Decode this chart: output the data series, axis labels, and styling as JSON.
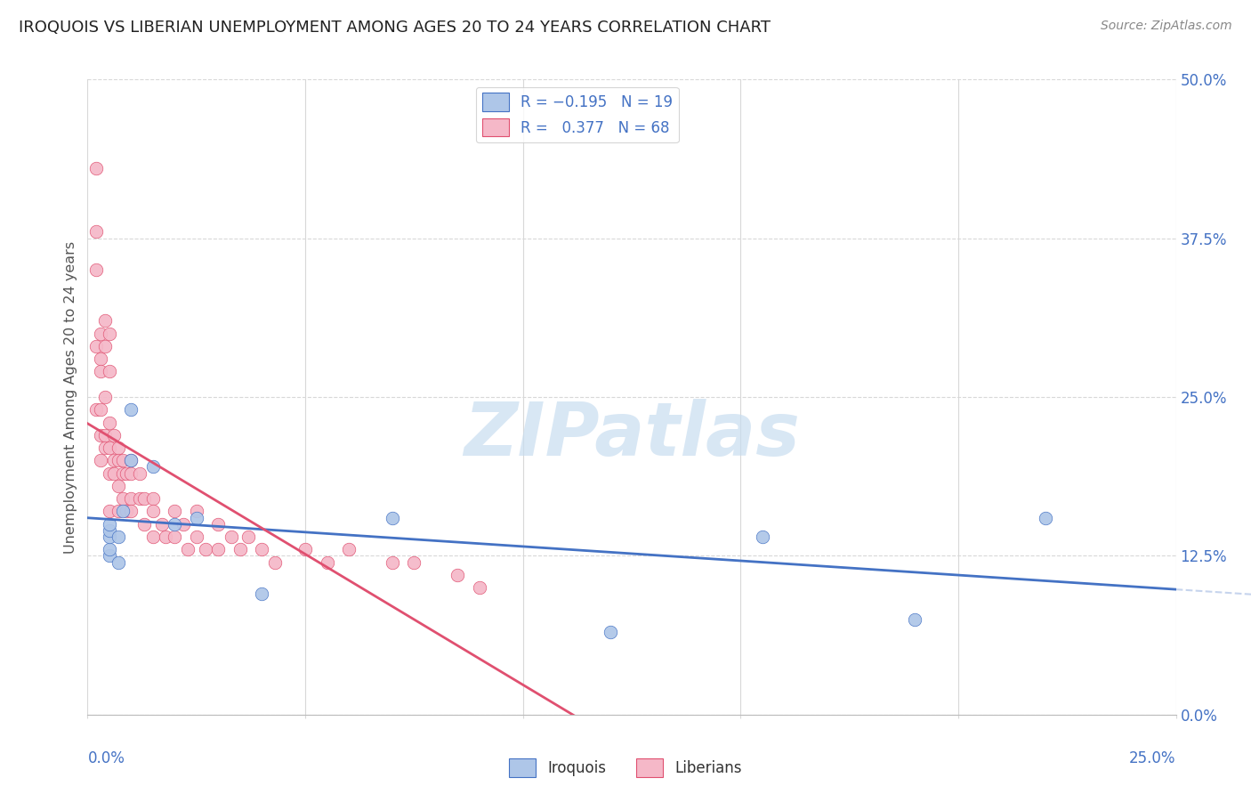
{
  "title": "IROQUOIS VS LIBERIAN UNEMPLOYMENT AMONG AGES 20 TO 24 YEARS CORRELATION CHART",
  "source": "Source: ZipAtlas.com",
  "ylabel": "Unemployment Among Ages 20 to 24 years",
  "yticks": [
    "0.0%",
    "12.5%",
    "25.0%",
    "37.5%",
    "50.0%"
  ],
  "ytick_vals": [
    0.0,
    0.125,
    0.25,
    0.375,
    0.5
  ],
  "xlim": [
    0.0,
    0.25
  ],
  "ylim": [
    0.0,
    0.5
  ],
  "iroquois_color": "#aec6e8",
  "liberian_color": "#f5b8c8",
  "iroquois_line_color": "#4472c4",
  "liberian_line_color": "#e05070",
  "R_iroquois": -0.195,
  "N_iroquois": 19,
  "R_liberian": 0.377,
  "N_liberian": 68,
  "iroquois_x": [
    0.005,
    0.005,
    0.005,
    0.005,
    0.005,
    0.007,
    0.007,
    0.008,
    0.01,
    0.01,
    0.015,
    0.02,
    0.025,
    0.04,
    0.07,
    0.12,
    0.155,
    0.19,
    0.22
  ],
  "iroquois_y": [
    0.125,
    0.13,
    0.14,
    0.145,
    0.15,
    0.12,
    0.14,
    0.16,
    0.24,
    0.2,
    0.195,
    0.15,
    0.155,
    0.095,
    0.155,
    0.065,
    0.14,
    0.075,
    0.155
  ],
  "liberian_x": [
    0.002,
    0.002,
    0.002,
    0.002,
    0.002,
    0.003,
    0.003,
    0.003,
    0.003,
    0.003,
    0.003,
    0.004,
    0.004,
    0.004,
    0.004,
    0.004,
    0.005,
    0.005,
    0.005,
    0.005,
    0.005,
    0.005,
    0.006,
    0.006,
    0.006,
    0.007,
    0.007,
    0.007,
    0.007,
    0.008,
    0.008,
    0.008,
    0.009,
    0.009,
    0.01,
    0.01,
    0.01,
    0.01,
    0.012,
    0.012,
    0.013,
    0.013,
    0.015,
    0.015,
    0.015,
    0.017,
    0.018,
    0.02,
    0.02,
    0.022,
    0.023,
    0.025,
    0.025,
    0.027,
    0.03,
    0.03,
    0.033,
    0.035,
    0.037,
    0.04,
    0.043,
    0.05,
    0.055,
    0.06,
    0.07,
    0.075,
    0.085,
    0.09
  ],
  "liberian_y": [
    0.43,
    0.38,
    0.35,
    0.29,
    0.24,
    0.3,
    0.28,
    0.27,
    0.24,
    0.22,
    0.2,
    0.31,
    0.29,
    0.25,
    0.22,
    0.21,
    0.3,
    0.27,
    0.23,
    0.21,
    0.19,
    0.16,
    0.22,
    0.2,
    0.19,
    0.21,
    0.2,
    0.18,
    0.16,
    0.2,
    0.19,
    0.17,
    0.19,
    0.16,
    0.2,
    0.19,
    0.17,
    0.16,
    0.19,
    0.17,
    0.17,
    0.15,
    0.17,
    0.16,
    0.14,
    0.15,
    0.14,
    0.16,
    0.14,
    0.15,
    0.13,
    0.16,
    0.14,
    0.13,
    0.15,
    0.13,
    0.14,
    0.13,
    0.14,
    0.13,
    0.12,
    0.13,
    0.12,
    0.13,
    0.12,
    0.12,
    0.11,
    0.1
  ],
  "watermark_text": "ZIPatlas",
  "watermark_color": "#c8ddf0",
  "grid_color": "#d8d8d8",
  "background_color": "#ffffff",
  "title_color": "#222222",
  "source_color": "#888888",
  "ylabel_color": "#555555",
  "axis_label_color": "#4472c4"
}
